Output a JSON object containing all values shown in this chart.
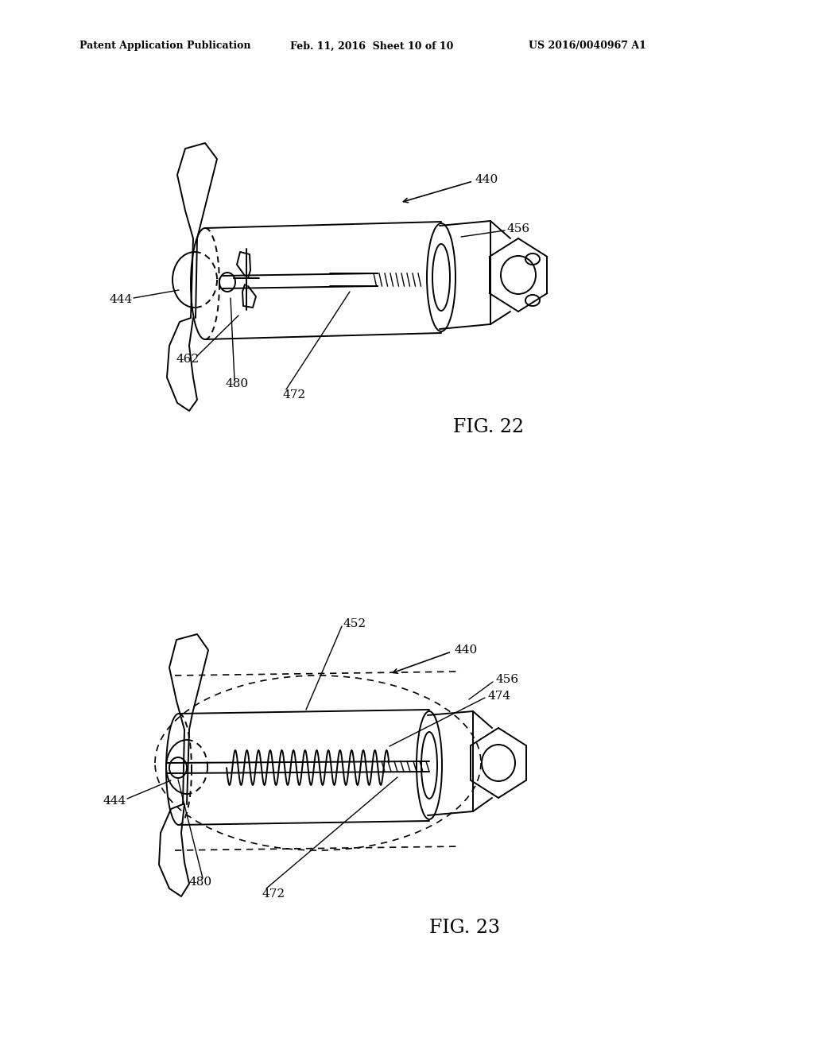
{
  "background_color": "#ffffff",
  "header_left": "Patent Application Publication",
  "header_mid": "Feb. 11, 2016  Sheet 10 of 10",
  "header_right": "US 2016/0040967 A1",
  "header_fontsize": 9,
  "fig22_label": "FIG. 22",
  "fig23_label": "FIG. 23",
  "fig_label_fontsize": 17,
  "ref_fontsize": 11,
  "line_color": "#000000",
  "line_width": 1.4
}
